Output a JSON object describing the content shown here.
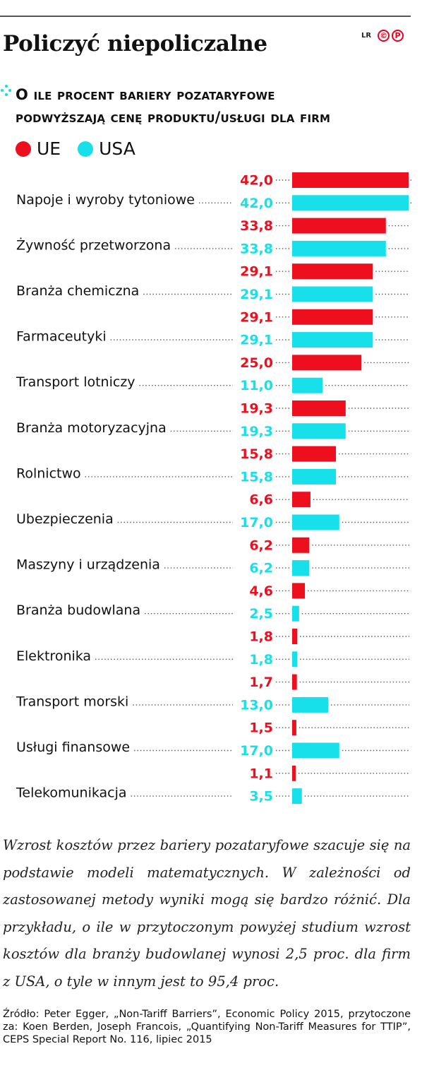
{
  "title": "Policzyć niepoliczalne",
  "brand": {
    "text": "LR",
    "mark_1": "©",
    "mark_2": "P"
  },
  "subtitle_line1": "O ile procent bariery pozataryfowe",
  "subtitle_line2": "podwyższają cenę produktu/usługi dla firm",
  "colors": {
    "ue": "#ee0f1e",
    "usa": "#17e0ea",
    "text": "#111111"
  },
  "chart_data": {
    "type": "bar",
    "orientation": "horizontal",
    "categories": [
      "Napoje i wyroby tytoniowe",
      "Żywność przetworzona",
      "Branża chemiczna",
      "Farmaceutyki",
      "Transport lotniczy",
      "Branża motoryzacyjna",
      "Rolnictwo",
      "Ubezpieczenia",
      "Maszyny i urządzenia",
      "Branża budowlana",
      "Elektronika",
      "Transport morski",
      "Usługi finansowe",
      "Telekomunikacja"
    ],
    "series": [
      {
        "name": "UE",
        "values": [
          42.0,
          33.8,
          29.1,
          29.1,
          25.0,
          19.3,
          15.8,
          6.6,
          6.2,
          4.6,
          1.8,
          1.7,
          1.5,
          1.1
        ],
        "labels": [
          "42,0",
          "33,8",
          "29,1",
          "29,1",
          "25,0",
          "19,3",
          "15,8",
          "6,6",
          "6,2",
          "4,6",
          "1,8",
          "1,7",
          "1,5",
          "1,1"
        ]
      },
      {
        "name": "USA",
        "values": [
          42.0,
          33.8,
          29.1,
          29.1,
          11.0,
          19.3,
          15.8,
          17.0,
          6.2,
          2.5,
          1.8,
          13.0,
          17.0,
          3.5
        ],
        "labels": [
          "42,0",
          "33,8",
          "29,1",
          "29,1",
          "11,0",
          "19,3",
          "15,8",
          "17,0",
          "6,2",
          "2,5",
          "1,8",
          "13,0",
          "17,0",
          "3,5"
        ]
      }
    ],
    "xlim": [
      0,
      42
    ],
    "legend": "top-left",
    "grid": false
  },
  "note": "Wzrost kosztów przez bariery pozataryfowe szacuje się na podstawie modeli matematycznych. W zależności od zastosowanej metody wyniki mogą się bardzo różnić. Dla przykładu, o ile w przytoczonym powyżej studium wzrost kosztów dla branży budowlanej wynosi 2,5 proc. dla firm z USA, o tyle w innym jest to 95,4 proc.",
  "source": "Źródło: Peter Egger, „Non-Tariff Barriers”, Economic Policy 2015, przytoczone za: Koen Berden, Joseph Francois, „Quantifying Non-Tariff Measures for TTIP”, CEPS Special Report No. 116, lipiec 2015"
}
